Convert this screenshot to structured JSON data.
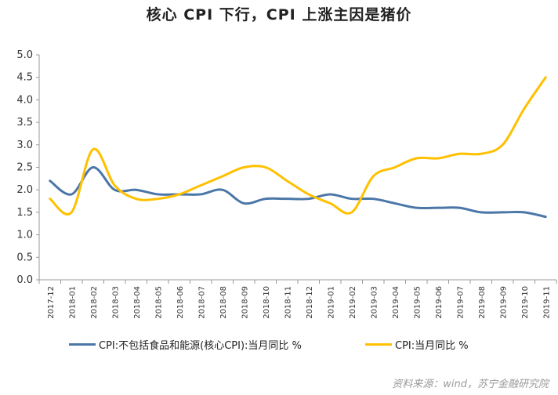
{
  "chart_data": {
    "type": "line",
    "title": "核心 CPI 下行，CPI 上涨主因是猪价",
    "categories": [
      "2017-12",
      "2018-01",
      "2018-02",
      "2018-03",
      "2018-04",
      "2018-05",
      "2018-06",
      "2018-07",
      "2018-08",
      "2018-09",
      "2018-10",
      "2018-11",
      "2018-12",
      "2019-01",
      "2019-02",
      "2019-03",
      "2019-04",
      "2019-05",
      "2019-06",
      "2019-07",
      "2019-08",
      "2019-09",
      "2019-10",
      "2019-11"
    ],
    "yticks": [
      "0.0",
      "0.5",
      "1.0",
      "1.5",
      "2.0",
      "2.5",
      "3.0",
      "3.5",
      "4.0",
      "4.5",
      "5.0"
    ],
    "ylim": [
      0,
      5
    ],
    "grid": false,
    "legend_position": "bottom",
    "series": [
      {
        "name": "CPI:不包括食品和能源(核心CPI):当月同比  %",
        "color": "#4a76a8",
        "values": [
          2.2,
          1.9,
          2.5,
          2.0,
          2.0,
          1.9,
          1.9,
          1.9,
          2.0,
          1.7,
          1.8,
          1.8,
          1.8,
          1.9,
          1.8,
          1.8,
          1.7,
          1.6,
          1.6,
          1.6,
          1.5,
          1.5,
          1.5,
          1.4
        ]
      },
      {
        "name": "CPI:当月同比  %",
        "color": "#ffc000",
        "values": [
          1.8,
          1.5,
          2.9,
          2.1,
          1.8,
          1.8,
          1.9,
          2.1,
          2.3,
          2.5,
          2.5,
          2.2,
          1.9,
          1.7,
          1.5,
          2.3,
          2.5,
          2.7,
          2.7,
          2.8,
          2.8,
          3.0,
          3.8,
          4.5
        ]
      }
    ]
  },
  "source_note": "资料来源：wind，苏宁金融研究院"
}
